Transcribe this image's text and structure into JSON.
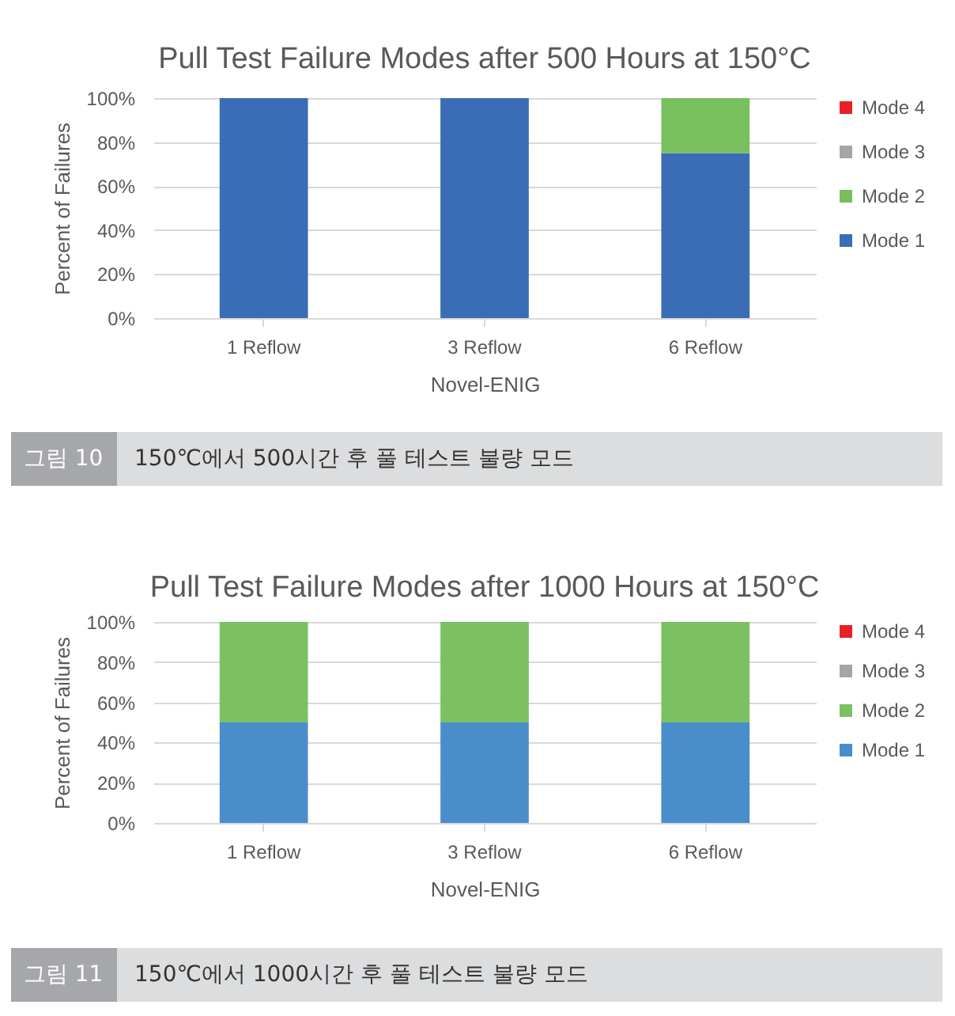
{
  "chart_data": [
    {
      "type": "bar",
      "title": "Pull Test Failure Modes after 500 Hours at 150°C",
      "xlabel": "Novel-ENIG",
      "ylabel": "Percent of Failures",
      "categories": [
        "1 Reflow",
        "3 Reflow",
        "6 Reflow"
      ],
      "stacked": true,
      "series": [
        {
          "name": "Mode 1",
          "color": "#3a6db5",
          "values": [
            100,
            100,
            75
          ]
        },
        {
          "name": "Mode 2",
          "color": "#78bf5e",
          "values": [
            0,
            0,
            25
          ]
        },
        {
          "name": "Mode 3",
          "color": "#a5a5a5",
          "values": [
            0,
            0,
            0
          ]
        },
        {
          "name": "Mode 4",
          "color": "#e82128",
          "values": [
            0,
            0,
            0
          ]
        }
      ],
      "ylim": [
        0,
        100
      ],
      "yticks": [
        {
          "value": 0,
          "label": "0%"
        },
        {
          "value": 20,
          "label": "20%"
        },
        {
          "value": 40,
          "label": "40%"
        },
        {
          "value": 60,
          "label": "60%"
        },
        {
          "value": 80,
          "label": "80%"
        },
        {
          "value": 100,
          "label": "100%"
        }
      ],
      "grid": "y",
      "legend": "right",
      "annotations": [
        "그림 10",
        "150℃에서 500시간 후 풀 테스트 불량 모드"
      ]
    },
    {
      "type": "bar",
      "title": "Pull Test Failure Modes after 1000 Hours at 150°C",
      "xlabel": "Novel-ENIG",
      "ylabel": "Percent of Failures",
      "categories": [
        "1 Reflow",
        "3 Reflow",
        "6 Reflow"
      ],
      "stacked": true,
      "series": [
        {
          "name": "Mode 1",
          "color": "#4a8dcb",
          "values": [
            50,
            50,
            50
          ]
        },
        {
          "name": "Mode 2",
          "color": "#7bc162",
          "values": [
            50,
            50,
            50
          ]
        },
        {
          "name": "Mode 3",
          "color": "#a5a5a5",
          "values": [
            0,
            0,
            0
          ]
        },
        {
          "name": "Mode 4",
          "color": "#e82128",
          "values": [
            0,
            0,
            0
          ]
        }
      ],
      "ylim": [
        0,
        100
      ],
      "yticks": [
        {
          "value": 0,
          "label": "0%"
        },
        {
          "value": 20,
          "label": "20%"
        },
        {
          "value": 40,
          "label": "40%"
        },
        {
          "value": 60,
          "label": "60%"
        },
        {
          "value": 80,
          "label": "80%"
        },
        {
          "value": 100,
          "label": "100%"
        }
      ],
      "grid": "y",
      "legend": "right",
      "annotations": [
        "그림 11",
        "150℃에서 1000시간 후 풀 테스트 불량 모드"
      ]
    }
  ]
}
